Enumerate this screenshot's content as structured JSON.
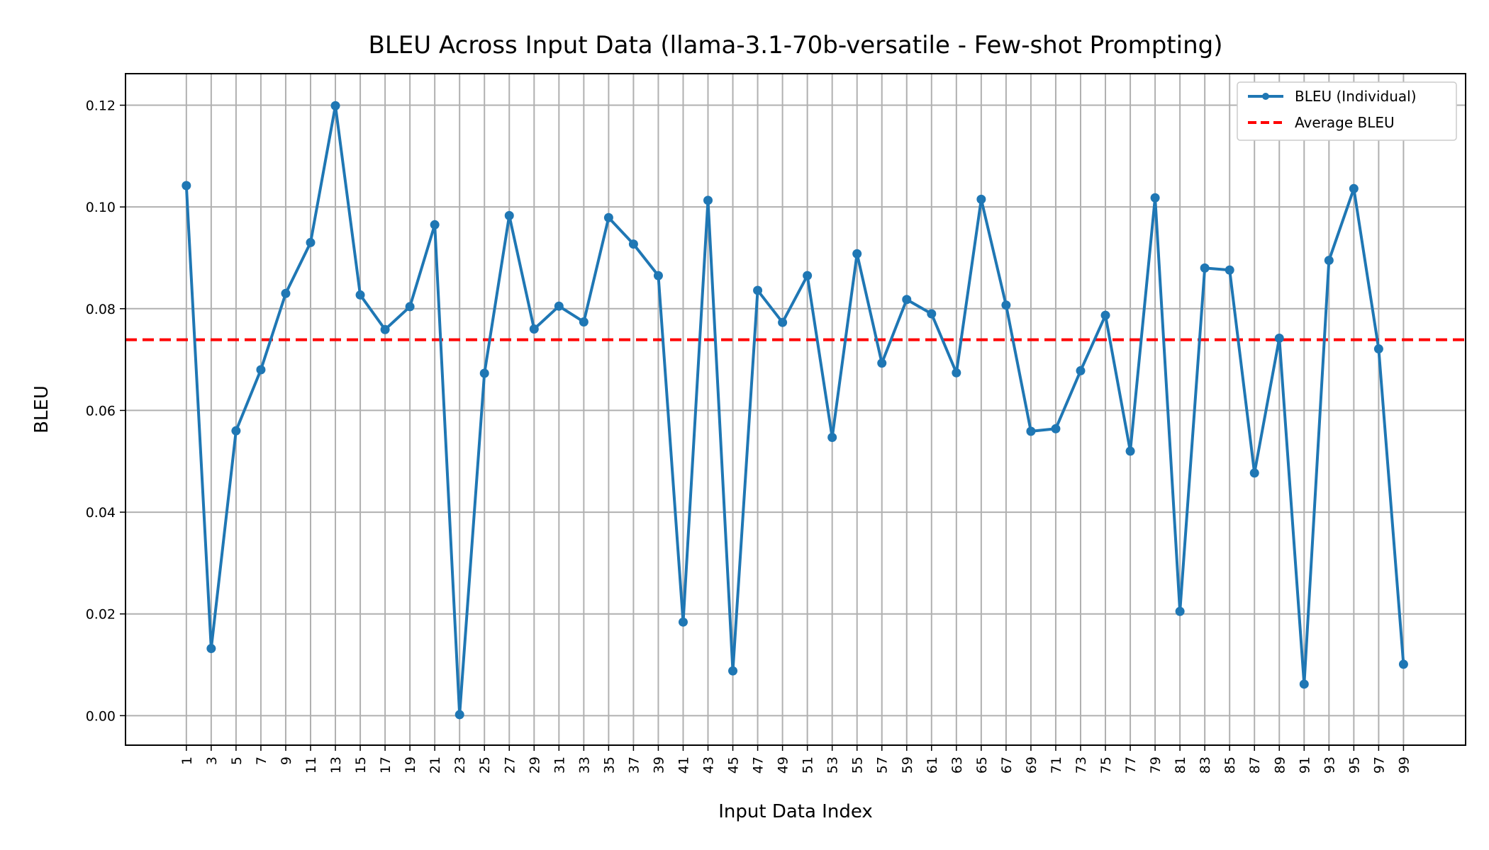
{
  "chart_data": {
    "type": "line",
    "title": "BLEU Across Input Data (llama-3.1-70b-versatile - Few-shot Prompting)",
    "xlabel": "Input Data Index",
    "ylabel": "BLEU",
    "x": [
      1,
      3,
      5,
      7,
      9,
      11,
      13,
      15,
      17,
      19,
      21,
      23,
      25,
      27,
      29,
      31,
      33,
      35,
      37,
      39,
      41,
      43,
      45,
      47,
      49,
      51,
      53,
      55,
      57,
      59,
      61,
      63,
      65,
      67,
      69,
      71,
      73,
      75,
      77,
      79,
      81,
      83,
      85,
      87,
      89,
      91,
      93,
      95,
      97,
      99
    ],
    "x_ticks": [
      "1",
      "3",
      "5",
      "7",
      "9",
      "11",
      "13",
      "15",
      "17",
      "19",
      "21",
      "23",
      "25",
      "27",
      "29",
      "31",
      "33",
      "35",
      "37",
      "39",
      "41",
      "43",
      "45",
      "47",
      "49",
      "51",
      "53",
      "55",
      "57",
      "59",
      "61",
      "63",
      "65",
      "67",
      "69",
      "71",
      "73",
      "75",
      "77",
      "79",
      "81",
      "83",
      "85",
      "87",
      "89",
      "91",
      "93",
      "95",
      "97",
      "99"
    ],
    "xlim": [
      -3.9,
      104
    ],
    "ylim": [
      -0.0058,
      0.1262
    ],
    "y_ticks": [
      "0.00",
      "0.02",
      "0.04",
      "0.06",
      "0.08",
      "0.10",
      "0.12"
    ],
    "y_tick_values": [
      0.0,
      0.02,
      0.04,
      0.06,
      0.08,
      0.1,
      0.12
    ],
    "grid": true,
    "legend_position": "top-right",
    "series": [
      {
        "name": "BLEU (Individual)",
        "color": "#1f77b4",
        "style": "solid line with circle markers",
        "values": [
          0.1042,
          0.0132,
          0.056,
          0.068,
          0.083,
          0.093,
          0.1199,
          0.0827,
          0.0759,
          0.0804,
          0.0965,
          0.0002,
          0.0673,
          0.0983,
          0.076,
          0.0805,
          0.0774,
          0.0979,
          0.0927,
          0.0865,
          0.0184,
          0.1013,
          0.0088,
          0.0836,
          0.0773,
          0.0865,
          0.0547,
          0.0908,
          0.0693,
          0.0818,
          0.079,
          0.0674,
          0.1015,
          0.0807,
          0.0559,
          0.0564,
          0.0678,
          0.0787,
          0.052,
          0.1018,
          0.0205,
          0.088,
          0.0876,
          0.0477,
          0.0742,
          0.0062,
          0.0895,
          0.1036,
          0.0721,
          0.0101
        ]
      },
      {
        "name": "Average BLEU",
        "color": "#ff0000",
        "style": "dashed horizontal line",
        "value": 0.0739
      }
    ]
  }
}
